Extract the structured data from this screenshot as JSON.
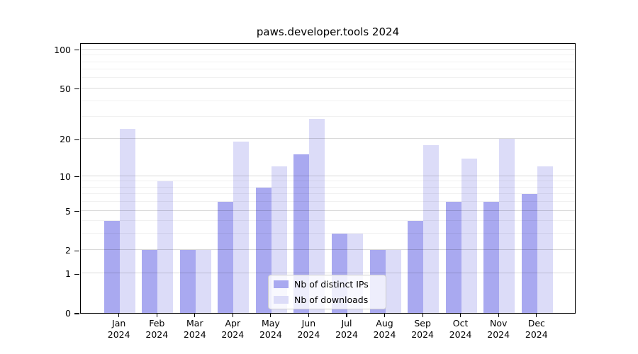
{
  "title": "paws.developer.tools 2024",
  "colors": {
    "ips_bar": "#a9a9f0",
    "downloads_bar": "#dcdcf8",
    "grid_major": "rgba(0,0,0,0.15)",
    "grid_minor": "rgba(0,0,0,0.055)",
    "axis": "#000000",
    "legend_border": "#cccccc",
    "background": "#ffffff"
  },
  "chart_data": {
    "type": "bar",
    "title": "paws.developer.tools 2024",
    "categories": [
      "Jan",
      "Feb",
      "Mar",
      "Apr",
      "May",
      "Jun",
      "Jul",
      "Aug",
      "Sep",
      "Oct",
      "Nov",
      "Dec"
    ],
    "category_year_line": "2024",
    "series": [
      {
        "name": "Nb of distinct IPs",
        "values": [
          4,
          2,
          2,
          6,
          8,
          15,
          3,
          2,
          4,
          6,
          6,
          7
        ]
      },
      {
        "name": "Nb of downloads",
        "values": [
          24,
          9,
          2,
          19,
          12,
          29,
          3,
          2,
          18,
          14,
          20,
          12
        ]
      }
    ],
    "y_scale": "log10(value+1)",
    "y_ticks_major": [
      0,
      1,
      2,
      5,
      10,
      20,
      50,
      100
    ],
    "y_ticks_minor": [
      3,
      4,
      6,
      7,
      8,
      9,
      30,
      40,
      60,
      70,
      80,
      90
    ],
    "ylim": [
      0,
      113
    ],
    "grid": "on",
    "legend_position": "lower center (inside plot)"
  },
  "legend": {
    "items": [
      {
        "label": "Nb of distinct IPs",
        "swatch": "ips_bar"
      },
      {
        "label": "Nb of downloads",
        "swatch": "downloads_bar"
      }
    ]
  }
}
